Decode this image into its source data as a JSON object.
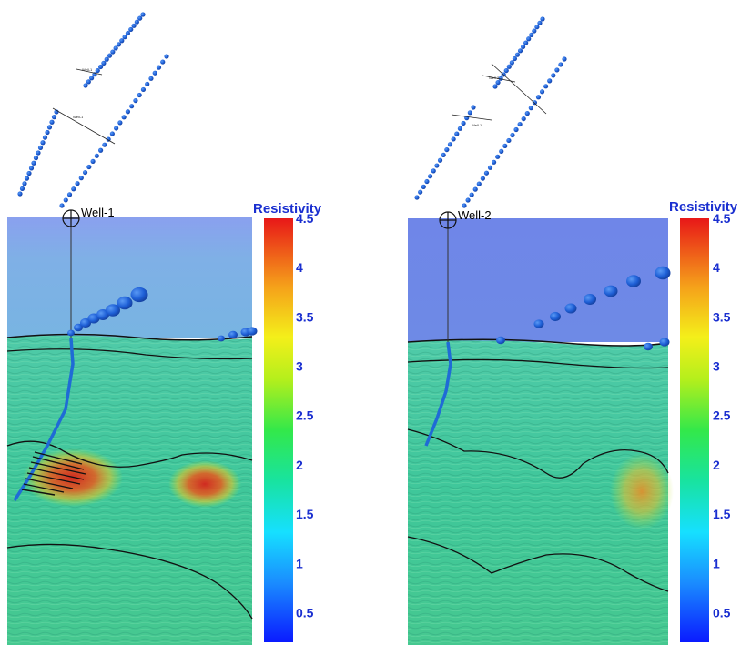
{
  "colorbar": {
    "title": "Resistivity",
    "ticks": [
      "4.5",
      "4",
      "3.5",
      "3",
      "2.5",
      "2",
      "1.5",
      "1",
      "0.5"
    ],
    "range": [
      0.2,
      4.5
    ],
    "colors": [
      "#0a1aff",
      "#16c6ff",
      "#17e39a",
      "#2ee84a",
      "#c8f21a",
      "#f7f21a",
      "#f7a21a",
      "#f24a1a",
      "#e81818"
    ]
  },
  "panels": [
    {
      "well_label": "Well-1",
      "map_labels": [
        "Well-1",
        "Well-1"
      ]
    },
    {
      "well_label": "Well-2",
      "map_labels": [
        "Well-2",
        "Well-1"
      ]
    }
  ],
  "colors": {
    "water_top": "#8a9ff0",
    "water_bottom": "#7db3e6",
    "water2_top": "#6f86e6",
    "water2_bottom": "#6c86e6",
    "sediment": "#3fc99e",
    "anomaly": "#e0301a",
    "well": "#1f6bd6",
    "sphere": "#1e5fd6"
  }
}
